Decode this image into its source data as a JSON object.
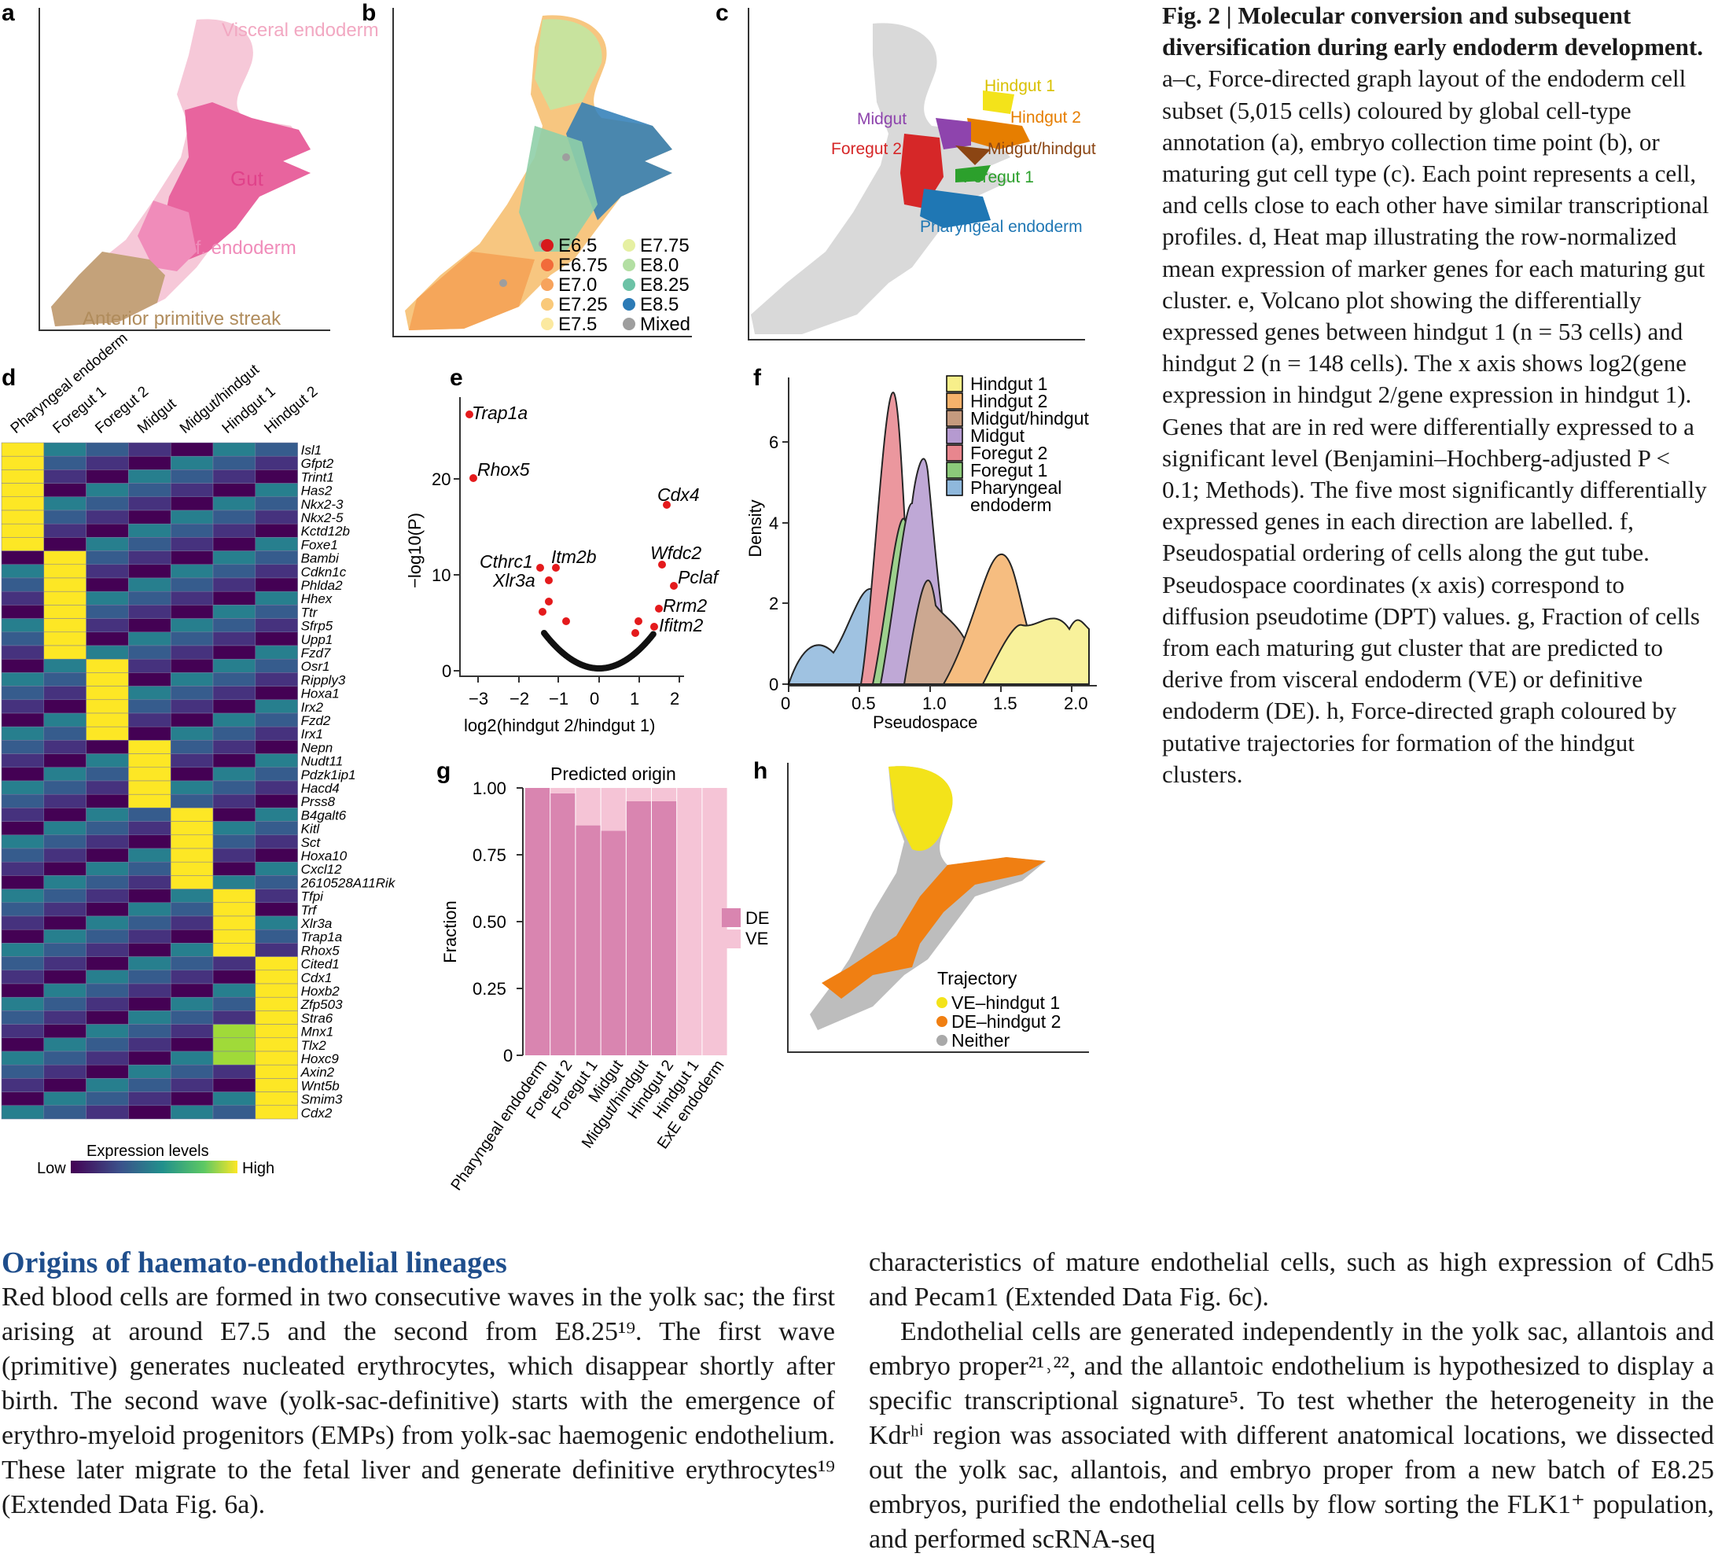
{
  "panels": {
    "a": {
      "letter": "a",
      "labels": [
        "Visceral endoderm",
        "Gut",
        "Def. endoderm",
        "Anterior primitive streak"
      ]
    },
    "b": {
      "letter": "b",
      "legend": [
        {
          "label": "E6.5",
          "color": "#d7191c"
        },
        {
          "label": "E6.75",
          "color": "#f26b3a"
        },
        {
          "label": "E7.0",
          "color": "#f7a35c"
        },
        {
          "label": "E7.25",
          "color": "#f9c97a"
        },
        {
          "label": "E7.5",
          "color": "#fbe9a0"
        },
        {
          "label": "E7.75",
          "color": "#e6f0a2"
        },
        {
          "label": "E8.0",
          "color": "#b3dfa3"
        },
        {
          "label": "E8.25",
          "color": "#6cc2a6"
        },
        {
          "label": "E8.5",
          "color": "#2c7bb6"
        },
        {
          "label": "Mixed",
          "color": "#9e9e9e"
        }
      ]
    },
    "c": {
      "letter": "c",
      "labels": [
        {
          "text": "Hindgut 1",
          "color": "#d9c100"
        },
        {
          "text": "Midgut",
          "color": "#8e44ad"
        },
        {
          "text": "Hindgut 2",
          "color": "#e67e00"
        },
        {
          "text": "Foregut 2",
          "color": "#d62728"
        },
        {
          "text": "Midgut/hindgut",
          "color": "#8b4513"
        },
        {
          "text": "Foregut 1",
          "color": "#2ca02c"
        },
        {
          "text": "Pharyngeal endoderm",
          "color": "#1f77b4"
        }
      ]
    },
    "d": {
      "letter": "d",
      "columns": [
        "Pharyngeal endoderm",
        "Foregut 1",
        "Foregut 2",
        "Midgut",
        "Midgut/hindgut",
        "Hindgut 1",
        "Hindgut 2"
      ],
      "genes": [
        "Isl1",
        "Gfpt2",
        "Trint1",
        "Has2",
        "Nkx2-3",
        "Nkx2-5",
        "Kctd12b",
        "Foxe1",
        "Bambi",
        "Cdkn1c",
        "Phlda2",
        "Hhex",
        "Ttr",
        "Sfrp5",
        "Upp1",
        "Fzd7",
        "Osr1",
        "Ripply3",
        "Hoxa1",
        "Irx2",
        "Fzd2",
        "Irx1",
        "Nepn",
        "Nudt11",
        "Pdzk1ip1",
        "Hacd4",
        "Prss8",
        "B4galt6",
        "Kitl",
        "Sct",
        "Hoxa10",
        "Cxcl12",
        "2610528A11Rik",
        "Tfpi",
        "Trf",
        "Xlr3a",
        "Trap1a",
        "Rhox5",
        "Cited1",
        "Cdx1",
        "Hoxb2",
        "Zfp503",
        "Stra6",
        "Mnx1",
        "Tlx2",
        "Hoxc9",
        "Axin2",
        "Wnt5b",
        "Smim3",
        "Cdx2"
      ],
      "legend_title": "Expression levels",
      "legend_low": "Low",
      "legend_high": "High"
    },
    "e": {
      "letter": "e",
      "ylabel": "−log10(P)",
      "xlabel": "log2(hindgut 2/hindgut 1)",
      "xticks": [
        "−3",
        "−2",
        "−1",
        "0",
        "1",
        "2"
      ],
      "yticks": [
        "0",
        "10",
        "20"
      ],
      "gene_labels": [
        "Trap1a",
        "Rhox5",
        "Cdx4",
        "Cthrc1",
        "Itm2b",
        "Xlr3a",
        "Wfdc2",
        "Pclaf",
        "Rrm2",
        "Ifitm2"
      ]
    },
    "f": {
      "letter": "f",
      "xlabel": "Pseudospace",
      "ylabel": "Density",
      "xticks": [
        "0",
        "0.5",
        "1.0",
        "1.5",
        "2.0"
      ],
      "yticks": [
        "0",
        "2",
        "4",
        "6"
      ],
      "legend": [
        {
          "label": "Hindgut 1",
          "color": "#f7ef8a"
        },
        {
          "label": "Hindgut 2",
          "color": "#f5b26b"
        },
        {
          "label": "Midgut/hindgut",
          "color": "#c49a7e"
        },
        {
          "label": "Midgut",
          "color": "#b59ad0"
        },
        {
          "label": "Foregut 2",
          "color": "#e8868e"
        },
        {
          "label": "Foregut 1",
          "color": "#8cc97a"
        },
        {
          "label": "Pharyngeal endoderm",
          "color": "#8fb8dc"
        }
      ]
    },
    "g": {
      "letter": "g",
      "title": "Predicted origin",
      "ylabel": "Fraction",
      "yticks": [
        "0",
        "0.25",
        "0.50",
        "0.75",
        "1.00"
      ],
      "legend": [
        {
          "label": "DE",
          "color": "#d985b0"
        },
        {
          "label": "VE",
          "color": "#f5c4d6"
        }
      ]
    },
    "h": {
      "letter": "h",
      "legend_title": "Trajectory",
      "legend": [
        {
          "label": "VE–hindgut 1",
          "color": "#f3e31a"
        },
        {
          "label": "DE–hindgut 2",
          "color": "#f07f12"
        },
        {
          "label": "Neither",
          "color": "#a9a9a9"
        }
      ]
    }
  },
  "chart_data": {
    "type": "bar",
    "title": "Predicted origin",
    "categories": [
      "Pharyngeal endoderm",
      "Foregut 2",
      "Foregut 1",
      "Midgut",
      "Midgut/hindgut",
      "Hindgut 2",
      "Hindgut 1",
      "ExE endoderm"
    ],
    "series": [
      {
        "name": "DE",
        "values": [
          1.0,
          0.98,
          0.86,
          0.84,
          0.95,
          0.95,
          0.0,
          0.0
        ]
      },
      {
        "name": "VE",
        "values": [
          0.0,
          0.02,
          0.14,
          0.16,
          0.05,
          0.05,
          1.0,
          1.0
        ]
      }
    ],
    "ylabel": "Fraction",
    "ylim": [
      0,
      1
    ]
  },
  "caption": {
    "title": "Fig. 2 | Molecular conversion and subsequent diversification during early endoderm development.",
    "text": "a–c, Force-directed graph layout of the endoderm cell subset (5,015 cells) coloured by global cell-type annotation (a), embryo collection time point (b), or maturing gut cell type (c). Each point represents a cell, and cells close to each other have similar transcriptional profiles. d, Heat map illustrating the row-normalized mean expression of marker genes for each maturing gut cluster. e, Volcano plot showing the differentially expressed genes between hindgut 1 (n = 53 cells) and hindgut 2 (n = 148 cells). The x axis shows log2(gene expression in hindgut 2/gene expression in hindgut 1). Genes that are in red were differentially expressed to a significant level (Benjamini–Hochberg-adjusted P < 0.1; Methods). The five most significantly differentially expressed genes in each direction are labelled. f, Pseudospatial ordering of cells along the gut tube. Pseudospace coordinates (x axis) correspond to diffusion pseudotime (DPT) values. g, Fraction of cells from each maturing gut cluster that are predicted to derive from visceral endoderm (VE) or definitive endoderm (DE). h, Force-directed graph coloured by putative trajectories for formation of the hindgut clusters."
  },
  "body": {
    "heading": "Origins of haemato-endothelial lineages",
    "left": "Red blood cells are formed in two consecutive waves in the yolk sac; the first arising at around E7.5 and the second from E8.25¹⁹. The first wave (primitive) generates nucleated erythrocytes, which disappear shortly after birth. The second wave (yolk-sac-definitive) starts with the emergence of erythro-myeloid progenitors (EMPs) from yolk-sac haemogenic endothelium. These later migrate to the fetal liver and generate definitive erythrocytes¹⁹ (Extended Data Fig. 6a).",
    "right_p1": "characteristics of mature endothelial cells, such as high expression of Cdh5 and Pecam1 (Extended Data Fig. 6c).",
    "right_p2": "Endothelial cells are generated independently in the yolk sac, allantois and embryo proper²¹˒²², and the allantoic endothelium is hypothesized to display a specific transcriptional signature⁵. To test whether the heterogeneity in the Kdrʰⁱ region was associated with different anatomical locations, we dissected out the yolk sac, allantois, and embryo proper from a new batch of E8.25 embryos, purified the endothelial cells by flow sorting the FLK1⁺ population, and performed scRNA-seq"
  }
}
